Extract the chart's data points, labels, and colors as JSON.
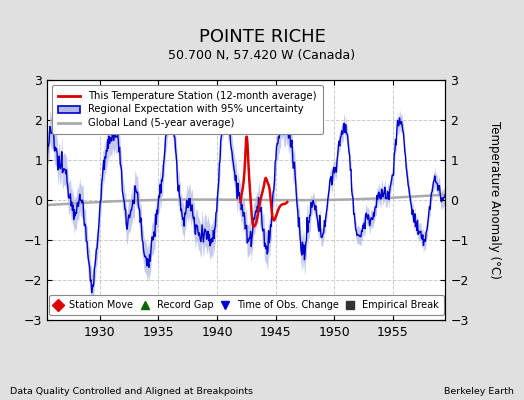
{
  "title": "POINTE RICHE",
  "subtitle": "50.700 N, 57.420 W (Canada)",
  "ylabel": "Temperature Anomaly (°C)",
  "xlabel_left": "Data Quality Controlled and Aligned at Breakpoints",
  "xlabel_right": "Berkeley Earth",
  "xlim": [
    1925.5,
    1959.5
  ],
  "ylim": [
    -3,
    3
  ],
  "yticks": [
    -3,
    -2,
    -1,
    0,
    1,
    2,
    3
  ],
  "xticks": [
    1930,
    1935,
    1940,
    1945,
    1950,
    1955
  ],
  "background_color": "#e0e0e0",
  "plot_bg_color": "#ffffff",
  "blue_line_color": "#0000cc",
  "blue_fill_color": "#b0b8e8",
  "red_line_color": "#dd0000",
  "gray_line_color": "#aaaaaa",
  "legend1_entries": [
    {
      "label": "This Temperature Station (12-month average)",
      "color": "#dd0000"
    },
    {
      "label": "Regional Expectation with 95% uncertainty",
      "color": "#0000cc"
    },
    {
      "label": "Global Land (5-year average)",
      "color": "#aaaaaa"
    }
  ],
  "legend2_entries": [
    {
      "label": "Station Move",
      "color": "#dd0000",
      "marker": "D"
    },
    {
      "label": "Record Gap",
      "color": "#006600",
      "marker": "^"
    },
    {
      "label": "Time of Obs. Change",
      "color": "#0000cc",
      "marker": "v"
    },
    {
      "label": "Empirical Break",
      "color": "#333333",
      "marker": "s"
    }
  ],
  "seed": 12345,
  "red_years": [
    1942.0,
    1942.2,
    1942.4,
    1942.5,
    1942.6,
    1942.7,
    1942.85,
    1943.0,
    1943.2,
    1943.4,
    1943.6,
    1943.8,
    1944.0,
    1944.15,
    1944.3,
    1944.5,
    1944.7,
    1944.9,
    1945.1,
    1945.4,
    1945.7,
    1946.0
  ],
  "red_vals": [
    -0.05,
    0.3,
    1.0,
    1.55,
    1.4,
    0.8,
    0.1,
    -0.5,
    -0.65,
    -0.5,
    -0.15,
    0.1,
    0.35,
    0.55,
    0.45,
    0.25,
    -0.35,
    -0.5,
    -0.35,
    -0.15,
    -0.1,
    -0.05
  ]
}
